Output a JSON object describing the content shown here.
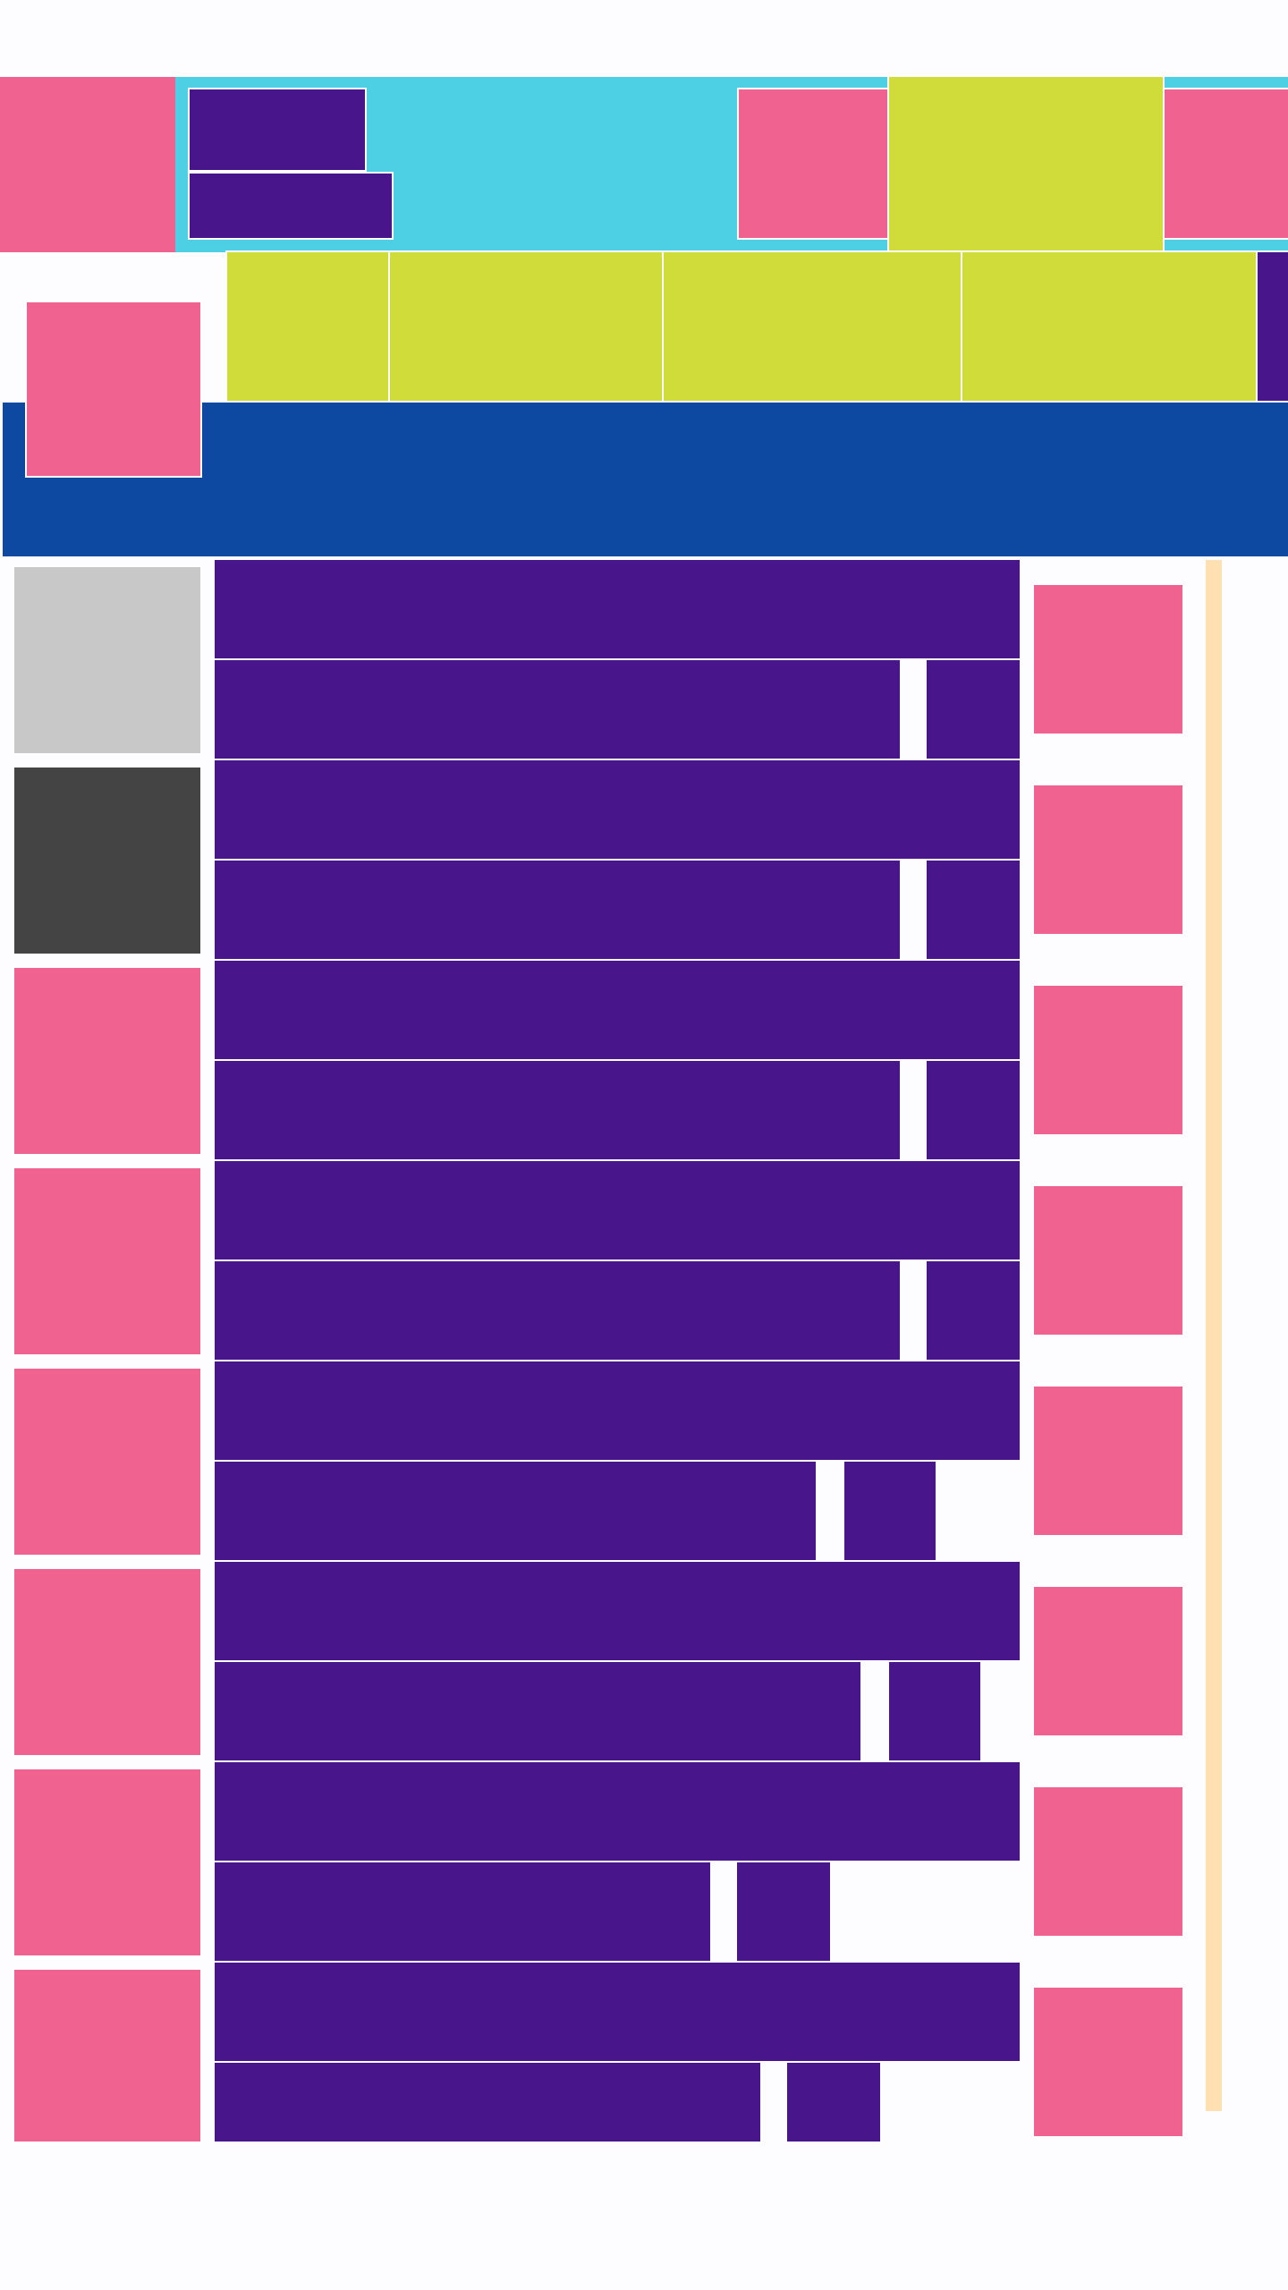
{
  "colors": {
    "background": "#fdfcfe",
    "header_bar": "#4dd0e3",
    "accent_pink": "#f0628f",
    "accent_lime": "#cfdc3a",
    "accent_purple": "#48168a",
    "banner_navy": "#0d49a1",
    "thumb_light_gray": "#c8c8c8",
    "thumb_dark_gray": "#444444",
    "scroll_track": "#ffe0b2"
  }
}
